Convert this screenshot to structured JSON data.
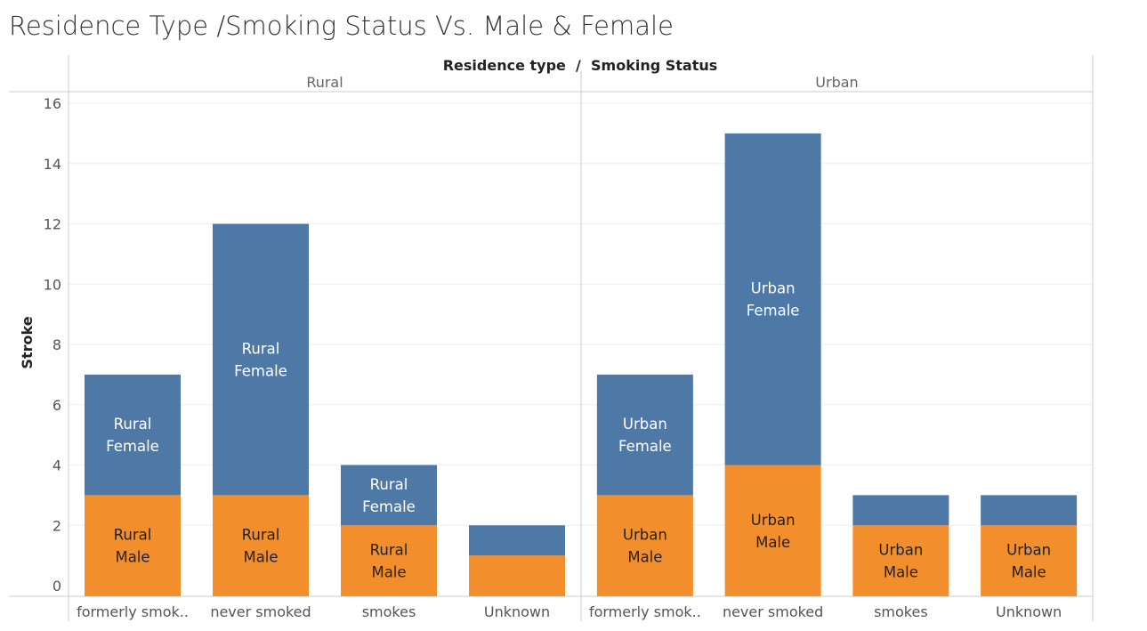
{
  "title": "Residence Type /Smoking Status Vs. Male & Female",
  "colors": {
    "female": "#4e79a7",
    "male": "#f28e2b",
    "label_on_female": "#ffffff",
    "label_on_male": "#222222"
  },
  "chart_data": {
    "type": "bar",
    "stacked": true,
    "header": "Residence type  /  Smoking Status",
    "ylabel": "Stroke",
    "ylim": [
      0,
      16
    ],
    "yticks": [
      0,
      2,
      4,
      6,
      8,
      10,
      12,
      14,
      16
    ],
    "groups": [
      {
        "name": "Rural",
        "bars": [
          {
            "category": "formerly smok..",
            "male": 3,
            "female": 4,
            "male_label": [
              "Rural",
              "Male"
            ],
            "female_label": [
              "Rural",
              "Female"
            ]
          },
          {
            "category": "never smoked",
            "male": 3,
            "female": 9,
            "male_label": [
              "Rural",
              "Male"
            ],
            "female_label": [
              "Rural",
              "Female"
            ]
          },
          {
            "category": "smokes",
            "male": 2,
            "female": 2,
            "male_label": [
              "Rural",
              "Male"
            ],
            "female_label": [
              "Rural",
              "Female"
            ]
          },
          {
            "category": "Unknown",
            "male": 1,
            "female": 1,
            "male_label": [],
            "female_label": []
          }
        ]
      },
      {
        "name": "Urban",
        "bars": [
          {
            "category": "formerly smok..",
            "male": 3,
            "female": 4,
            "male_label": [
              "Urban",
              "Male"
            ],
            "female_label": [
              "Urban",
              "Female"
            ]
          },
          {
            "category": "never smoked",
            "male": 4,
            "female": 11,
            "male_label": [
              "Urban",
              "Male"
            ],
            "female_label": [
              "Urban",
              "Female"
            ]
          },
          {
            "category": "smokes",
            "male": 2,
            "female": 1,
            "male_label": [
              "Urban",
              "Male"
            ],
            "female_label": []
          },
          {
            "category": "Unknown",
            "male": 2,
            "female": 1,
            "male_label": [
              "Urban",
              "Male"
            ],
            "female_label": []
          }
        ]
      }
    ]
  }
}
